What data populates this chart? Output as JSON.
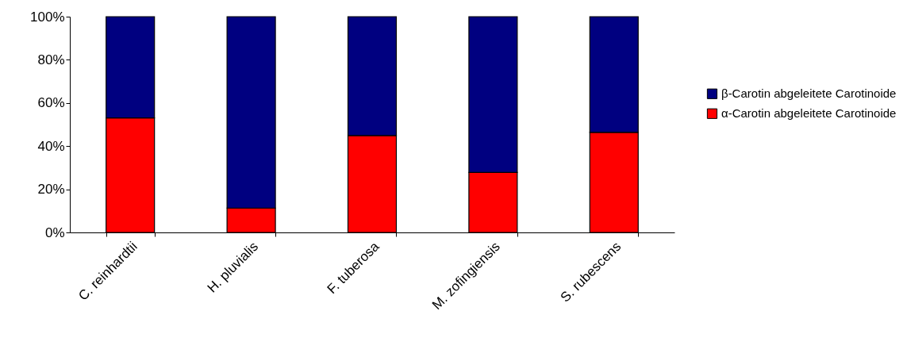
{
  "chart_data": {
    "type": "bar",
    "stacked": true,
    "categories": [
      "C. reinhardtii",
      "H. pluvialis",
      "F. tuberosa",
      "M. zofingiensis",
      "S. rubescens"
    ],
    "series": [
      {
        "name": "α-Carotin abgeleitete Carotinoide",
        "color": "#ff0000",
        "values": [
          53.1,
          11.3,
          44.9,
          27.8,
          46.4
        ]
      },
      {
        "name": "β-Carotin abgeleitete Carotinoide",
        "color": "#000080",
        "values": [
          46.9,
          88.7,
          55.1,
          72.2,
          53.6
        ]
      }
    ],
    "ylim": [
      0,
      100
    ],
    "yticks": [
      {
        "value": 0,
        "label": "0%"
      },
      {
        "value": 20,
        "label": "20%"
      },
      {
        "value": 40,
        "label": "40%"
      },
      {
        "value": 60,
        "label": "60%"
      },
      {
        "value": 80,
        "label": "80%"
      },
      {
        "value": 100,
        "label": "100%"
      }
    ],
    "grid": false,
    "legend": "right"
  }
}
